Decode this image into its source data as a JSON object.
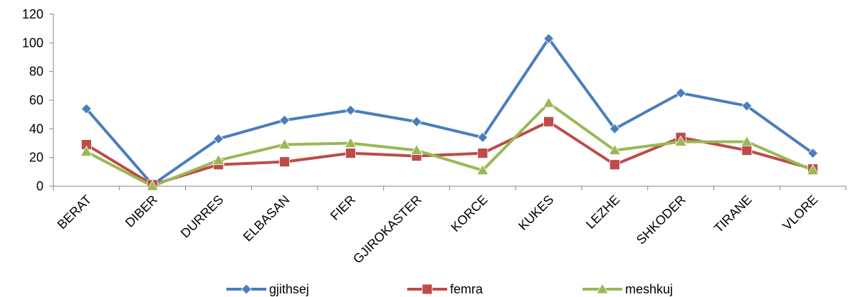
{
  "chart_data": {
    "type": "line",
    "categories": [
      "BERAT",
      "DIBER",
      "DURRES",
      "ELBASAN",
      "FIER",
      "GJIROKASTER",
      "KORCE",
      "KUKES",
      "LEZHE",
      "SHKODER",
      "TIRANE",
      "VLORE"
    ],
    "series": [
      {
        "name": "gjithsej",
        "color": "#4a7ebb",
        "marker": "diamond",
        "values": [
          54,
          1,
          33,
          46,
          53,
          45,
          34,
          103,
          40,
          65,
          56,
          23
        ]
      },
      {
        "name": "femra",
        "color": "#be4b48",
        "marker": "square",
        "values": [
          29,
          1,
          15,
          17,
          23,
          21,
          23,
          45,
          15,
          34,
          25,
          12
        ]
      },
      {
        "name": "meshkuj",
        "color": "#98b954",
        "marker": "triangle",
        "values": [
          24,
          0,
          18,
          29,
          30,
          25,
          11,
          58,
          25,
          31,
          31,
          11
        ]
      }
    ],
    "yticks": [
      "0",
      "20",
      "40",
      "60",
      "80",
      "100",
      "120"
    ],
    "ylim": [
      0,
      120
    ],
    "grid": false,
    "legend": "bottom",
    "title": "",
    "xlabel": "",
    "ylabel": ""
  }
}
